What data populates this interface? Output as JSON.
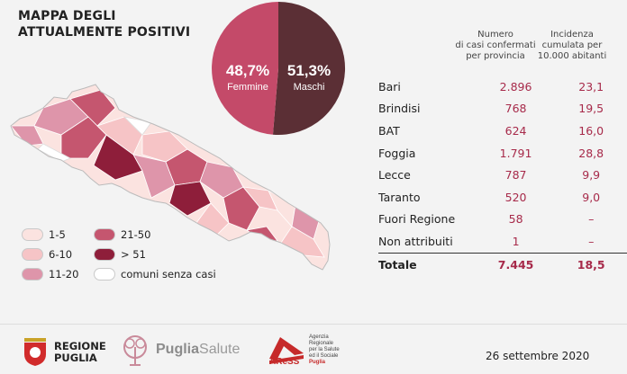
{
  "title_line1": "MAPPA DEGLI",
  "title_line2": "ATTUALMENTE POSITIVI",
  "gender": {
    "female_pct": "48,7%",
    "female_label": "Femmine",
    "male_pct": "51,3%",
    "male_label": "Maschi",
    "female_share": 0.487,
    "female_color": "#c44a69",
    "male_color": "#5b2f35"
  },
  "legend": [
    {
      "label": "1-5",
      "color": "#fbe3e0"
    },
    {
      "label": "6-10",
      "color": "#f6c4c6"
    },
    {
      "label": "11-20",
      "color": "#de95aa"
    },
    {
      "label": "21-50",
      "color": "#c5566f"
    },
    {
      "label": "> 51",
      "color": "#8e1e3a"
    },
    {
      "label": "comuni senza casi",
      "color": "#ffffff"
    }
  ],
  "table": {
    "header_cases": "Numero di casi confermati per provincia",
    "header_cases_lines": [
      "Numero",
      "di casi confermati",
      "per provincia"
    ],
    "header_incidence_lines": [
      "Incidenza",
      "cumulata per",
      "10.000 abitanti"
    ],
    "rows": [
      {
        "name": "Bari",
        "cases": "2.896",
        "incidence": "23,1"
      },
      {
        "name": "Brindisi",
        "cases": "768",
        "incidence": "19,5"
      },
      {
        "name": "BAT",
        "cases": "624",
        "incidence": "16,0"
      },
      {
        "name": "Foggia",
        "cases": "1.791",
        "incidence": "28,8"
      },
      {
        "name": "Lecce",
        "cases": "787",
        "incidence": "9,9"
      },
      {
        "name": "Taranto",
        "cases": "520",
        "incidence": "9,0"
      },
      {
        "name": "Fuori Regione",
        "cases": "58",
        "incidence": "–"
      },
      {
        "name": "Non attribuiti",
        "cases": "1",
        "incidence": "–"
      }
    ],
    "total": {
      "name": "Totale",
      "cases": "7.445",
      "incidence": "18,5"
    }
  },
  "logos": {
    "regione_line1": "REGIONE",
    "regione_line2": "PUGLIA",
    "puglia": "Puglia",
    "salute": "Salute",
    "aress": "AReSS",
    "aress_desc": [
      "Agenzia",
      "Regionale",
      "per la Salute",
      "ed il Sociale",
      "Puglia"
    ]
  },
  "date": "26 settembre 2020"
}
